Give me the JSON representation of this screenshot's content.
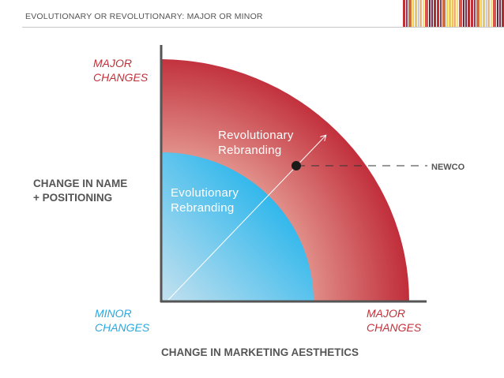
{
  "header": {
    "title": "EVOLUTIONARY OR REVOLUTIONARY: MAJOR OR MINOR"
  },
  "diagram": {
    "y_axis": {
      "top_label_line1": "MAJOR",
      "top_label_line2": "CHANGES",
      "title_line1": "CHANGE IN NAME",
      "title_line2": "+ POSITIONING"
    },
    "x_axis": {
      "origin_label_line1": "MINOR",
      "origin_label_line2": "CHANGES",
      "right_label_line1": "MAJOR",
      "right_label_line2": "CHANGES",
      "title": "CHANGE IN MARKETING AESTHETICS"
    },
    "zones": {
      "outer_line1": "Revolutionary",
      "outer_line2": "Rebranding",
      "inner_line1": "Evolutionary",
      "inner_line2": "Rebranding"
    },
    "marker": {
      "label": "NEWCO"
    }
  },
  "colors": {
    "outer_dark": "#bf2a37",
    "outer_light": "#e59b93",
    "inner_dark": "#33b8ec",
    "inner_light": "#bfe0f0",
    "axis": "#555555",
    "accent_red": "#c0313a",
    "accent_blue": "#2aa8e0"
  }
}
